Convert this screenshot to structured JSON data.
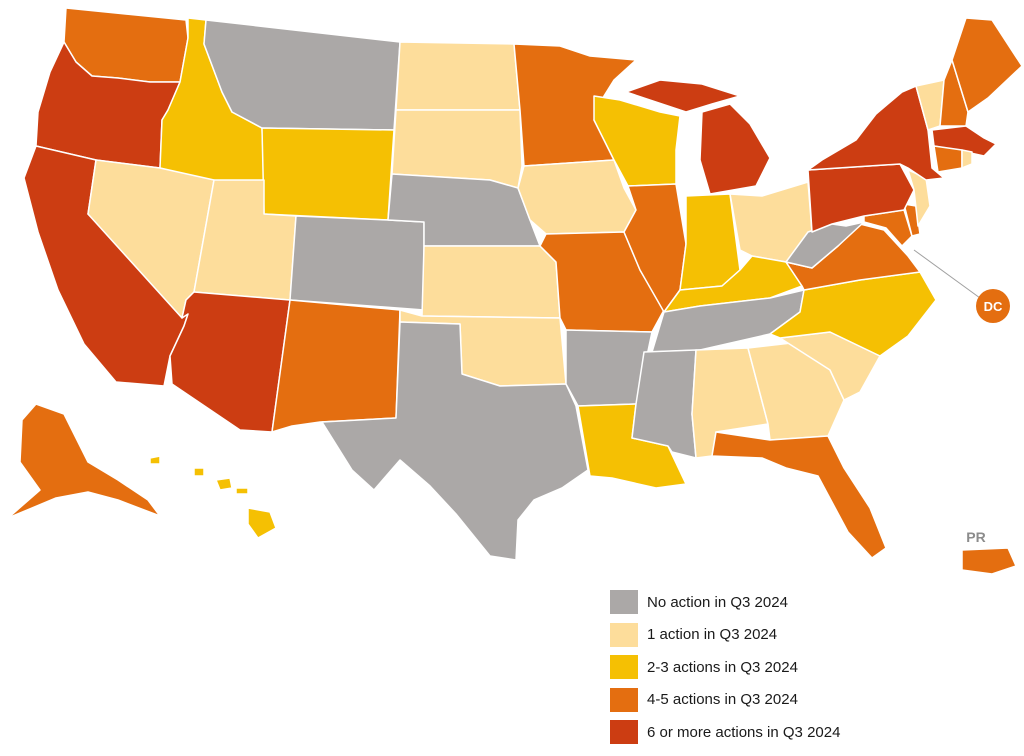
{
  "colors": {
    "none": "#aba8a7",
    "one": "#fddd9b",
    "two_three": "#f5c003",
    "four_five": "#e46e10",
    "six_plus": "#cc3d12",
    "label_gray": "#8c8c8c",
    "label_white": "#ffffff"
  },
  "labels": {
    "dc": "DC",
    "pr": "PR"
  },
  "legend": [
    {
      "label": "No action in Q3 2024",
      "color": "#aba8a7"
    },
    {
      "label": "1 action in Q3 2024",
      "color": "#fddd9b"
    },
    {
      "label": "2-3 actions in Q3 2024",
      "color": "#f5c003"
    },
    {
      "label": "4-5 actions in Q3 2024",
      "color": "#e46e10"
    },
    {
      "label": "6 or more actions in Q3 2024",
      "color": "#cc3d12"
    }
  ],
  "states": {
    "WA": "four_five",
    "OR": "six_plus",
    "CA": "six_plus",
    "ID": "two_three",
    "NV": "one",
    "MT": "none",
    "WY": "two_three",
    "UT": "one",
    "AZ": "six_plus",
    "CO": "none",
    "NM": "four_five",
    "ND": "one",
    "SD": "one",
    "NE": "none",
    "KS": "one",
    "OK": "one",
    "TX": "none",
    "MN": "four_five",
    "IA": "one",
    "MO": "four_five",
    "AR": "none",
    "LA": "two_three",
    "WI": "two_three",
    "IL": "four_five",
    "MI": "six_plus",
    "IN": "two_three",
    "OH": "one",
    "KY": "two_three",
    "TN": "none",
    "MS": "none",
    "AL": "one",
    "GA": "one",
    "FL": "four_five",
    "SC": "one",
    "NC": "two_three",
    "VA": "four_five",
    "WV": "none",
    "PA": "six_plus",
    "NY": "six_plus",
    "VT": "one",
    "NH": "four_five",
    "ME": "four_five",
    "MA": "six_plus",
    "CT": "four_five",
    "RI": "one",
    "NJ": "one",
    "DE": "four_five",
    "MD": "four_five",
    "AK": "four_five",
    "HI": "two_three",
    "PR": "four_five",
    "DC": "four_five"
  }
}
